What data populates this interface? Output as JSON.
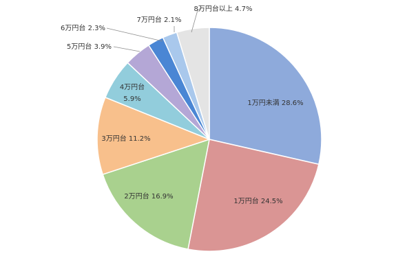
{
  "chart_data": {
    "type": "pie",
    "title": "",
    "start": "12 o'clock",
    "direction": "clockwise",
    "legend": "none",
    "slices": [
      {
        "label": "1万円未満 28.6%",
        "value": 28.6,
        "color": "#8eaadb"
      },
      {
        "label": "1万円台 24.5%",
        "value": 24.5,
        "color": "#da9594"
      },
      {
        "label": "2万円台 16.9%",
        "value": 16.9,
        "color": "#a9d18e"
      },
      {
        "label": "3万円台 11.2%",
        "value": 11.2,
        "color": "#f8c08c"
      },
      {
        "label": "4万円台\n5.9%",
        "value": 5.9,
        "color": "#92cddc"
      },
      {
        "label": "5万円台 3.9%",
        "value": 3.9,
        "color": "#b4a7d6"
      },
      {
        "label": "6万円台 2.3%",
        "value": 2.3,
        "color": "#4a86d4"
      },
      {
        "label": "7万円台 2.1%",
        "value": 2.1,
        "color": "#a9c8ec"
      },
      {
        "label": "8万円台以上 4.7%",
        "value": 4.7,
        "color": "#e4e4e4"
      }
    ]
  }
}
